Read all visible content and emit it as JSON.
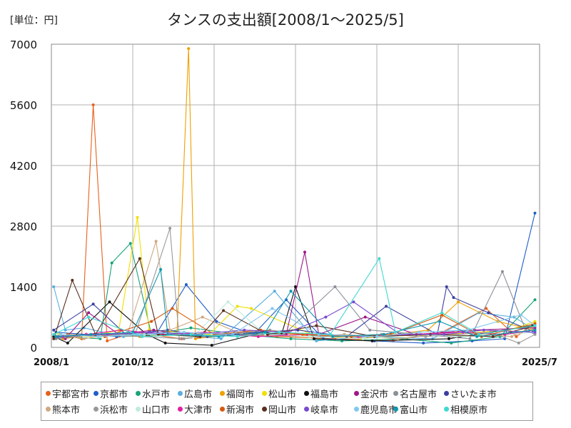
{
  "unit_label": "[単位：円]",
  "chart_data": {
    "type": "line",
    "title": "タンスの支出額[2008/1～2025/5]",
    "xlabel": "",
    "ylabel": "",
    "ylim": [
      0,
      7000
    ],
    "y_ticks": [
      "0",
      "1400",
      "2800",
      "4200",
      "5600",
      "7000"
    ],
    "x_ticks": [
      "2008/1",
      "2010/12",
      "2013/11",
      "2016/10",
      "2019/9",
      "2022/8",
      "2025/7"
    ],
    "x_range": [
      "2008/1",
      "2025/7"
    ],
    "grid": true,
    "legend_position": "bottom",
    "series": [
      {
        "name": "宇都宮市",
        "color": "#e8601c",
        "values": [
          [
            "2008/4",
            300
          ],
          [
            "2009/2",
            200
          ],
          [
            "2009/7",
            5600
          ],
          [
            "2010/1",
            150
          ],
          [
            "2011/1",
            350
          ],
          [
            "2012/9",
            200
          ],
          [
            "2014/6",
            300
          ],
          [
            "2016/2",
            250
          ],
          [
            "2018/3",
            200
          ],
          [
            "2020/4",
            150
          ],
          [
            "2022/1",
            350
          ],
          [
            "2023/8",
            900
          ],
          [
            "2024/9",
            250
          ],
          [
            "2025/5",
            550
          ]
        ]
      },
      {
        "name": "京都市",
        "color": "#1f5fc8",
        "values": [
          [
            "2008/3",
            350
          ],
          [
            "2009/4",
            300
          ],
          [
            "2010/5",
            250
          ],
          [
            "2011/10",
            300
          ],
          [
            "2012/11",
            1450
          ],
          [
            "2013/12",
            600
          ],
          [
            "2015/4",
            300
          ],
          [
            "2016/6",
            1100
          ],
          [
            "2017/10",
            200
          ],
          [
            "2019/8",
            150
          ],
          [
            "2021/5",
            100
          ],
          [
            "2023/2",
            150
          ],
          [
            "2024/4",
            200
          ],
          [
            "2025/5",
            3100
          ]
        ]
      },
      {
        "name": "水戸市",
        "color": "#17a378",
        "values": [
          [
            "2008/5",
            250
          ],
          [
            "2009/10",
            200
          ],
          [
            "2010/3",
            1950
          ],
          [
            "2010/11",
            2400
          ],
          [
            "2011/8",
            300
          ],
          [
            "2013/1",
            450
          ],
          [
            "2014/10",
            300
          ],
          [
            "2016/8",
            200
          ],
          [
            "2018/6",
            150
          ],
          [
            "2020/8",
            200
          ],
          [
            "2022/5",
            100
          ],
          [
            "2024/2",
            250
          ],
          [
            "2025/5",
            1100
          ]
        ]
      },
      {
        "name": "広島市",
        "color": "#5aaee0",
        "values": [
          [
            "2008/2",
            1400
          ],
          [
            "2008/7",
            400
          ],
          [
            "2009/3",
            450
          ],
          [
            "2010/8",
            250
          ],
          [
            "2012/6",
            300
          ],
          [
            "2014/2",
            200
          ],
          [
            "2016/1",
            1300
          ],
          [
            "2017/7",
            150
          ],
          [
            "2019/5",
            250
          ],
          [
            "2021/9",
            200
          ],
          [
            "2023/5",
            800
          ],
          [
            "2024/8",
            700
          ],
          [
            "2025/5",
            400
          ]
        ]
      },
      {
        "name": "福岡市",
        "color": "#f0a000",
        "values": [
          [
            "2008/6",
            200
          ],
          [
            "2009/8",
            300
          ],
          [
            "2011/3",
            250
          ],
          [
            "2012/7",
            300
          ],
          [
            "2012/12",
            6900
          ],
          [
            "2013/3",
            200
          ],
          [
            "2015/1",
            350
          ],
          [
            "2017/2",
            300
          ],
          [
            "2019/2",
            200
          ],
          [
            "2021/7",
            400
          ],
          [
            "2022/8",
            1050
          ],
          [
            "2024/1",
            600
          ],
          [
            "2025/5",
            400
          ]
        ]
      },
      {
        "name": "松山市",
        "color": "#f0e000",
        "values": [
          [
            "2008/4",
            300
          ],
          [
            "2009/6",
            250
          ],
          [
            "2010/6",
            400
          ],
          [
            "2011/2",
            3000
          ],
          [
            "2011/7",
            400
          ],
          [
            "2013/9",
            300
          ],
          [
            "2014/9",
            950
          ],
          [
            "2015/3",
            900
          ],
          [
            "2017/5",
            300
          ],
          [
            "2019/10",
            250
          ],
          [
            "2022/2",
            300
          ],
          [
            "2024/6",
            400
          ],
          [
            "2025/5",
            600
          ]
        ]
      },
      {
        "name": "福島市",
        "color": "#111111",
        "values": [
          [
            "2008/2",
            250
          ],
          [
            "2008/8",
            100
          ],
          [
            "2010/2",
            1050
          ],
          [
            "2011/6",
            300
          ],
          [
            "2012/2",
            100
          ],
          [
            "2013/10",
            50
          ],
          [
            "2015/8",
            350
          ],
          [
            "2016/4",
            300
          ],
          [
            "2016/10",
            1400
          ],
          [
            "2017/6",
            200
          ],
          [
            "2019/7",
            150
          ],
          [
            "2022/4",
            200
          ],
          [
            "2025/4",
            500
          ]
        ]
      },
      {
        "name": "金沢市",
        "color": "#a0178a",
        "values": [
          [
            "2008/7",
            200
          ],
          [
            "2009/5",
            800
          ],
          [
            "2010/6",
            300
          ],
          [
            "2011/9",
            400
          ],
          [
            "2013/4",
            250
          ],
          [
            "2015/2",
            300
          ],
          [
            "2016/6",
            300
          ],
          [
            "2017/2",
            2200
          ],
          [
            "2017/8",
            300
          ],
          [
            "2019/4",
            700
          ],
          [
            "2021/2",
            300
          ],
          [
            "2023/3",
            400
          ],
          [
            "2025/5",
            450
          ]
        ]
      },
      {
        "name": "名古屋市",
        "color": "#8a8f98",
        "values": [
          [
            "2008/3",
            200
          ],
          [
            "2009/9",
            300
          ],
          [
            "2011/4",
            250
          ],
          [
            "2012/10",
            200
          ],
          [
            "2014/8",
            350
          ],
          [
            "2016/5",
            300
          ],
          [
            "2018/3",
            1400
          ],
          [
            "2019/6",
            400
          ],
          [
            "2021/4",
            300
          ],
          [
            "2023/1",
            200
          ],
          [
            "2024/3",
            1750
          ],
          [
            "2025/1",
            400
          ],
          [
            "2025/5",
            300
          ]
        ]
      },
      {
        "name": "さいたま市",
        "color": "#3b3fa0",
        "values": [
          [
            "2008/2",
            400
          ],
          [
            "2009/7",
            1000
          ],
          [
            "2010/9",
            300
          ],
          [
            "2012/3",
            400
          ],
          [
            "2013/8",
            250
          ],
          [
            "2015/5",
            350
          ],
          [
            "2016/11",
            400
          ],
          [
            "2018/8",
            250
          ],
          [
            "2020/1",
            950
          ],
          [
            "2021/11",
            300
          ],
          [
            "2022/3",
            1400
          ],
          [
            "2022/6",
            1150
          ],
          [
            "2023/9",
            800
          ],
          [
            "2025/5",
            350
          ]
        ]
      },
      {
        "name": "熊本市",
        "color": "#d0a880",
        "values": [
          [
            "2008/5",
            300
          ],
          [
            "2009/3",
            200
          ],
          [
            "2010/10",
            350
          ],
          [
            "2011/10",
            2450
          ],
          [
            "2012/4",
            400
          ],
          [
            "2013/6",
            700
          ],
          [
            "2014/11",
            300
          ],
          [
            "2016/9",
            250
          ],
          [
            "2018/7",
            300
          ],
          [
            "2020/6",
            200
          ],
          [
            "2022/7",
            350
          ],
          [
            "2024/7",
            250
          ],
          [
            "2025/5",
            500
          ]
        ]
      },
      {
        "name": "浜松市",
        "color": "#999999",
        "values": [
          [
            "2008/4",
            250
          ],
          [
            "2009/11",
            300
          ],
          [
            "2011/1",
            300
          ],
          [
            "2012/4",
            2750
          ],
          [
            "2012/8",
            200
          ],
          [
            "2014/4",
            300
          ],
          [
            "2015/11",
            400
          ],
          [
            "2017/9",
            250
          ],
          [
            "2019/11",
            300
          ],
          [
            "2021/6",
            250
          ],
          [
            "2023/10",
            350
          ],
          [
            "2024/10",
            100
          ],
          [
            "2025/5",
            300
          ]
        ]
      },
      {
        "name": "山口市",
        "color": "#c0ecdc",
        "values": [
          [
            "2008/3",
            300
          ],
          [
            "2009/10",
            250
          ],
          [
            "2011/5",
            300
          ],
          [
            "2013/2",
            250
          ],
          [
            "2014/5",
            1050
          ],
          [
            "2015/9",
            300
          ],
          [
            "2017/4",
            250
          ],
          [
            "2019/3",
            200
          ],
          [
            "2021/1",
            300
          ],
          [
            "2022/11",
            250
          ],
          [
            "2024/5",
            300
          ],
          [
            "2025/5",
            350
          ]
        ]
      },
      {
        "name": "大津市",
        "color": "#e020a0",
        "values": [
          [
            "2008/6",
            250
          ],
          [
            "2009/4",
            300
          ],
          [
            "2010/7",
            400
          ],
          [
            "2012/1",
            300
          ],
          [
            "2013/7",
            350
          ],
          [
            "2015/6",
            250
          ],
          [
            "2017/3",
            300
          ],
          [
            "2019/1",
            250
          ],
          [
            "2020/11",
            300
          ],
          [
            "2022/10",
            350
          ],
          [
            "2024/4",
            300
          ],
          [
            "2025/5",
            400
          ]
        ]
      },
      {
        "name": "新潟市",
        "color": "#d45a10",
        "values": [
          [
            "2008/8",
            300
          ],
          [
            "2009/12",
            250
          ],
          [
            "2011/8",
            600
          ],
          [
            "2012/5",
            900
          ],
          [
            "2013/11",
            300
          ],
          [
            "2015/7",
            400
          ],
          [
            "2017/1",
            300
          ],
          [
            "2018/10",
            250
          ],
          [
            "2020/3",
            300
          ],
          [
            "2022/1",
            750
          ],
          [
            "2023/6",
            250
          ],
          [
            "2025/5",
            550
          ]
        ]
      },
      {
        "name": "岡山市",
        "color": "#5a3020",
        "values": [
          [
            "2008/2",
            200
          ],
          [
            "2008/10",
            1550
          ],
          [
            "2009/8",
            300
          ],
          [
            "2011/3",
            2050
          ],
          [
            "2011/11",
            300
          ],
          [
            "2013/5",
            250
          ],
          [
            "2014/3",
            850
          ],
          [
            "2015/10",
            300
          ],
          [
            "2017/7",
            500
          ],
          [
            "2019/8",
            250
          ],
          [
            "2021/8",
            300
          ],
          [
            "2023/11",
            250
          ],
          [
            "2025/5",
            500
          ]
        ]
      },
      {
        "name": "岐阜市",
        "color": "#7a4ad0",
        "values": [
          [
            "2008/4",
            250
          ],
          [
            "2010/1",
            300
          ],
          [
            "2011/7",
            350
          ],
          [
            "2013/3",
            300
          ],
          [
            "2014/12",
            400
          ],
          [
            "2016/7",
            350
          ],
          [
            "2017/11",
            700
          ],
          [
            "2018/11",
            1050
          ],
          [
            "2020/7",
            300
          ],
          [
            "2022/2",
            300
          ],
          [
            "2023/7",
            400
          ],
          [
            "2025/5",
            350
          ]
        ]
      },
      {
        "name": "鹿児島市",
        "color": "#80c8f0",
        "values": [
          [
            "2008/5",
            300
          ],
          [
            "2009/9",
            250
          ],
          [
            "2011/2",
            300
          ],
          [
            "2012/10",
            350
          ],
          [
            "2014/7",
            300
          ],
          [
            "2015/12",
            900
          ],
          [
            "2017/8",
            300
          ],
          [
            "2019/9",
            250
          ],
          [
            "2021/3",
            350
          ],
          [
            "2022/12",
            400
          ],
          [
            "2024/11",
            750
          ],
          [
            "2025/5",
            500
          ]
        ]
      },
      {
        "name": "富山市",
        "color": "#1098b0",
        "values": [
          [
            "2008/3",
            250
          ],
          [
            "2009/6",
            300
          ],
          [
            "2010/12",
            350
          ],
          [
            "2011/12",
            1800
          ],
          [
            "2012/3",
            300
          ],
          [
            "2014/1",
            250
          ],
          [
            "2015/9",
            350
          ],
          [
            "2016/8",
            1300
          ],
          [
            "2018/2",
            250
          ],
          [
            "2019/12",
            300
          ],
          [
            "2021/12",
            600
          ],
          [
            "2023/4",
            250
          ],
          [
            "2025/5",
            400
          ]
        ]
      },
      {
        "name": "相模原市",
        "color": "#40d8d0",
        "values": [
          [
            "2008/2",
            300
          ],
          [
            "2009/5",
            700
          ],
          [
            "2011/4",
            250
          ],
          [
            "2013/1",
            300
          ],
          [
            "2014/9",
            250
          ],
          [
            "2016/3",
            350
          ],
          [
            "2018/1",
            300
          ],
          [
            "2019/10",
            2050
          ],
          [
            "2020/5",
            350
          ],
          [
            "2022/1",
            800
          ],
          [
            "2023/5",
            300
          ],
          [
            "2025/5",
            500
          ]
        ]
      }
    ]
  }
}
